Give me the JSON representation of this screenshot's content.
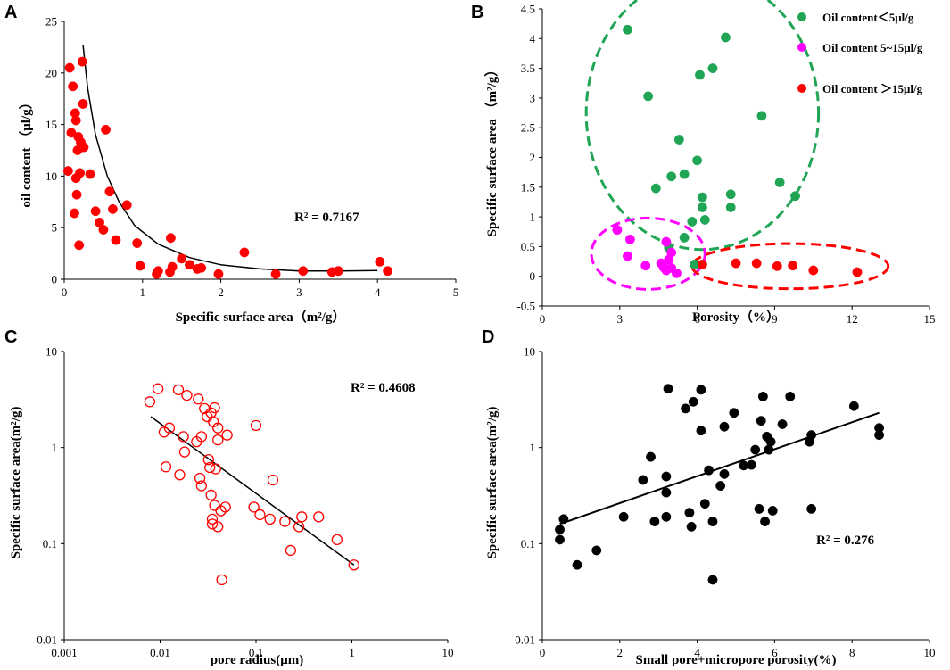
{
  "chart_data": [
    {
      "id": "A",
      "type": "scatter",
      "panel_label": "A",
      "xlabel": "Specific surface area（m²/g）",
      "ylabel": "oil content （μl/g）",
      "xscale": "linear",
      "yscale": "linear",
      "xlim": [
        0,
        5
      ],
      "ylim": [
        0,
        25
      ],
      "xticks": [
        0,
        1,
        2,
        3,
        4,
        5
      ],
      "yticks": [
        0,
        5,
        10,
        15,
        20,
        25
      ],
      "tick_labels_x": [
        "0",
        "1",
        "2",
        "3",
        "4",
        "5"
      ],
      "tick_labels_y": [
        "0",
        "5",
        "10",
        "15",
        "20",
        "25"
      ],
      "marker": "filled-circle",
      "marker_color": "#ff0000",
      "annotation": "R² = 0.7167",
      "fit": {
        "type": "power-like curve",
        "color": "#000000",
        "x": [
          0.24,
          0.3,
          0.4,
          0.55,
          0.7,
          0.9,
          1.2,
          1.6,
          2.0,
          2.5,
          3.0,
          3.5,
          4.0
        ],
        "y": [
          22.7,
          18.5,
          14.0,
          10.0,
          7.5,
          5.2,
          3.4,
          2.1,
          1.4,
          1.0,
          0.8,
          0.8,
          0.85
        ]
      },
      "points": [
        {
          "x": 0.05,
          "y": 10.5
        },
        {
          "x": 0.07,
          "y": 20.5
        },
        {
          "x": 0.09,
          "y": 14.2
        },
        {
          "x": 0.11,
          "y": 18.7
        },
        {
          "x": 0.13,
          "y": 6.4
        },
        {
          "x": 0.14,
          "y": 16.1
        },
        {
          "x": 0.15,
          "y": 15.4
        },
        {
          "x": 0.15,
          "y": 9.8
        },
        {
          "x": 0.16,
          "y": 8.2
        },
        {
          "x": 0.17,
          "y": 12.5
        },
        {
          "x": 0.18,
          "y": 13.8
        },
        {
          "x": 0.19,
          "y": 3.3
        },
        {
          "x": 0.2,
          "y": 10.3
        },
        {
          "x": 0.21,
          "y": 13.3
        },
        {
          "x": 0.23,
          "y": 21.1
        },
        {
          "x": 0.24,
          "y": 17.0
        },
        {
          "x": 0.25,
          "y": 12.8
        },
        {
          "x": 0.33,
          "y": 10.2
        },
        {
          "x": 0.4,
          "y": 6.6
        },
        {
          "x": 0.45,
          "y": 5.5
        },
        {
          "x": 0.5,
          "y": 4.8
        },
        {
          "x": 0.53,
          "y": 14.5
        },
        {
          "x": 0.58,
          "y": 8.5
        },
        {
          "x": 0.62,
          "y": 6.8
        },
        {
          "x": 0.66,
          "y": 3.8
        },
        {
          "x": 0.8,
          "y": 7.2
        },
        {
          "x": 0.93,
          "y": 3.5
        },
        {
          "x": 0.97,
          "y": 1.3
        },
        {
          "x": 1.18,
          "y": 0.5
        },
        {
          "x": 1.2,
          "y": 0.8
        },
        {
          "x": 1.35,
          "y": 0.7
        },
        {
          "x": 1.36,
          "y": 4.0
        },
        {
          "x": 1.38,
          "y": 1.2
        },
        {
          "x": 1.5,
          "y": 2.0
        },
        {
          "x": 1.6,
          "y": 1.4
        },
        {
          "x": 1.7,
          "y": 1.0
        },
        {
          "x": 1.75,
          "y": 1.1
        },
        {
          "x": 1.97,
          "y": 0.5
        },
        {
          "x": 2.3,
          "y": 2.6
        },
        {
          "x": 2.7,
          "y": 0.5
        },
        {
          "x": 3.05,
          "y": 0.8
        },
        {
          "x": 3.42,
          "y": 0.7
        },
        {
          "x": 3.5,
          "y": 0.8
        },
        {
          "x": 4.03,
          "y": 1.7
        },
        {
          "x": 4.13,
          "y": 0.8
        }
      ]
    },
    {
      "id": "B",
      "type": "scatter",
      "panel_label": "B",
      "xlabel": "Porosity（%）",
      "ylabel": "Specific surface area （m²/g）",
      "xscale": "linear",
      "yscale": "linear",
      "xlim": [
        0,
        15
      ],
      "ylim": [
        -0.5,
        4.5
      ],
      "xticks": [
        0,
        3,
        6,
        9,
        12,
        15
      ],
      "yticks": [
        -0.5,
        0,
        0.5,
        1,
        1.5,
        2,
        2.5,
        3,
        3.5,
        4,
        4.5
      ],
      "tick_labels_x": [
        "0",
        "3",
        "6",
        "9",
        "12",
        "15"
      ],
      "tick_labels_y": [
        "-0.5",
        "0",
        "0.5",
        "1",
        "1.5",
        "2",
        "2.5",
        "3",
        "3.5",
        "4",
        "4.5"
      ],
      "legend_position": "top-right",
      "series": [
        {
          "name": "Oil content＜5μl/g",
          "color": "#1fa554",
          "points": [
            {
              "x": 3.3,
              "y": 4.15
            },
            {
              "x": 4.1,
              "y": 3.03
            },
            {
              "x": 4.4,
              "y": 1.48
            },
            {
              "x": 4.9,
              "y": 0.48
            },
            {
              "x": 5.0,
              "y": 1.68
            },
            {
              "x": 5.3,
              "y": 2.3
            },
            {
              "x": 5.5,
              "y": 1.72
            },
            {
              "x": 5.5,
              "y": 0.65
            },
            {
              "x": 5.8,
              "y": 0.92
            },
            {
              "x": 5.9,
              "y": 0.2
            },
            {
              "x": 6.0,
              "y": 1.95
            },
            {
              "x": 6.1,
              "y": 3.39
            },
            {
              "x": 6.2,
              "y": 1.33
            },
            {
              "x": 6.2,
              "y": 1.16
            },
            {
              "x": 6.3,
              "y": 0.95
            },
            {
              "x": 6.6,
              "y": 3.5
            },
            {
              "x": 7.1,
              "y": 4.02
            },
            {
              "x": 7.3,
              "y": 1.38
            },
            {
              "x": 7.3,
              "y": 1.16
            },
            {
              "x": 8.5,
              "y": 2.7
            },
            {
              "x": 9.2,
              "y": 1.58
            },
            {
              "x": 9.8,
              "y": 1.35
            }
          ]
        },
        {
          "name": "Oil content 5~15μl/g",
          "color": "#ff00ff",
          "points": [
            {
              "x": 2.9,
              "y": 0.78
            },
            {
              "x": 3.3,
              "y": 0.34
            },
            {
              "x": 3.4,
              "y": 0.62
            },
            {
              "x": 4.0,
              "y": 0.18
            },
            {
              "x": 4.6,
              "y": 0.22
            },
            {
              "x": 4.7,
              "y": 0.15
            },
            {
              "x": 4.8,
              "y": 0.1
            },
            {
              "x": 4.8,
              "y": 0.58
            },
            {
              "x": 4.9,
              "y": 0.28
            },
            {
              "x": 5.0,
              "y": 0.4
            },
            {
              "x": 5.0,
              "y": 0.14
            },
            {
              "x": 5.2,
              "y": 0.05
            }
          ]
        },
        {
          "name": "Oil content ＞15μl/g",
          "color": "#ff0000",
          "points": [
            {
              "x": 6.2,
              "y": 0.2
            },
            {
              "x": 7.5,
              "y": 0.22
            },
            {
              "x": 8.3,
              "y": 0.22
            },
            {
              "x": 9.1,
              "y": 0.17
            },
            {
              "x": 9.7,
              "y": 0.18
            },
            {
              "x": 10.5,
              "y": 0.1
            },
            {
              "x": 12.2,
              "y": 0.07
            }
          ]
        }
      ],
      "ellipses": [
        {
          "series": "Oil content＜5μl/g",
          "color": "#1fa554",
          "cx": 6.2,
          "cy": 2.75,
          "rx": 4.5,
          "ry": 2.3
        },
        {
          "series": "Oil content 5~15μl/g",
          "color": "#ff00ff",
          "cx": 4.1,
          "cy": 0.38,
          "rx": 2.2,
          "ry": 0.6
        },
        {
          "series": "Oil content ＞15μl/g",
          "color": "#ff0000",
          "cx": 9.6,
          "cy": 0.17,
          "rx": 3.8,
          "ry": 0.38
        }
      ]
    },
    {
      "id": "C",
      "type": "scatter",
      "panel_label": "C",
      "xlabel": "pore radius(μm)",
      "ylabel": "Specific surface area(m²/g)",
      "xscale": "log",
      "yscale": "log",
      "xlim": [
        0.001,
        10
      ],
      "ylim": [
        0.01,
        10
      ],
      "xticks": [
        0.001,
        0.01,
        0.1,
        1,
        10
      ],
      "yticks": [
        0.01,
        0.1,
        1,
        10
      ],
      "tick_labels_x": [
        "0.001",
        "0.01",
        "0.1",
        "1",
        "10"
      ],
      "tick_labels_y": [
        "0.01",
        "0.1",
        "1",
        "10"
      ],
      "marker": "open-circle",
      "marker_color": "#ff0000",
      "annotation": "R² = 0.4608",
      "fit": {
        "type": "power law",
        "color": "#000000",
        "x": [
          0.008,
          1.05
        ],
        "y": [
          2.1,
          0.06
        ]
      },
      "points": [
        {
          "x": 0.0078,
          "y": 3.0
        },
        {
          "x": 0.0095,
          "y": 4.1
        },
        {
          "x": 0.011,
          "y": 1.45
        },
        {
          "x": 0.0115,
          "y": 0.63
        },
        {
          "x": 0.0125,
          "y": 1.6
        },
        {
          "x": 0.0155,
          "y": 4.0
        },
        {
          "x": 0.016,
          "y": 0.52
        },
        {
          "x": 0.0175,
          "y": 1.3
        },
        {
          "x": 0.018,
          "y": 0.9
        },
        {
          "x": 0.019,
          "y": 3.5
        },
        {
          "x": 0.024,
          "y": 1.15
        },
        {
          "x": 0.025,
          "y": 3.2
        },
        {
          "x": 0.026,
          "y": 0.48
        },
        {
          "x": 0.027,
          "y": 1.3
        },
        {
          "x": 0.027,
          "y": 0.4
        },
        {
          "x": 0.029,
          "y": 2.55
        },
        {
          "x": 0.031,
          "y": 2.1
        },
        {
          "x": 0.032,
          "y": 0.75
        },
        {
          "x": 0.033,
          "y": 0.62
        },
        {
          "x": 0.034,
          "y": 2.3
        },
        {
          "x": 0.034,
          "y": 0.32
        },
        {
          "x": 0.035,
          "y": 0.16
        },
        {
          "x": 0.035,
          "y": 0.18
        },
        {
          "x": 0.036,
          "y": 1.85
        },
        {
          "x": 0.037,
          "y": 0.25
        },
        {
          "x": 0.037,
          "y": 2.6
        },
        {
          "x": 0.038,
          "y": 0.6
        },
        {
          "x": 0.04,
          "y": 0.15
        },
        {
          "x": 0.04,
          "y": 1.6
        },
        {
          "x": 0.04,
          "y": 1.2
        },
        {
          "x": 0.043,
          "y": 0.22
        },
        {
          "x": 0.044,
          "y": 0.042
        },
        {
          "x": 0.048,
          "y": 0.24
        },
        {
          "x": 0.05,
          "y": 1.35
        },
        {
          "x": 0.095,
          "y": 0.24
        },
        {
          "x": 0.1,
          "y": 1.7
        },
        {
          "x": 0.11,
          "y": 0.2
        },
        {
          "x": 0.14,
          "y": 0.18
        },
        {
          "x": 0.15,
          "y": 0.46
        },
        {
          "x": 0.2,
          "y": 0.17
        },
        {
          "x": 0.23,
          "y": 0.085
        },
        {
          "x": 0.28,
          "y": 0.15
        },
        {
          "x": 0.3,
          "y": 0.19
        },
        {
          "x": 0.45,
          "y": 0.19
        },
        {
          "x": 0.7,
          "y": 0.11
        },
        {
          "x": 1.05,
          "y": 0.06
        }
      ]
    },
    {
      "id": "D",
      "type": "scatter",
      "panel_label": "D",
      "xlabel": "Small pore+micropore porosity(%)",
      "ylabel": "Specific surface area(m²/g)",
      "xscale": "linear",
      "yscale": "log",
      "xlim": [
        0,
        10
      ],
      "ylim": [
        0.01,
        10
      ],
      "xticks": [
        0,
        2,
        4,
        6,
        8,
        10
      ],
      "yticks": [
        0.01,
        0.1,
        1,
        10
      ],
      "tick_labels_x": [
        "0",
        "2",
        "4",
        "6",
        "8",
        "10"
      ],
      "tick_labels_y": [
        "0.01",
        "0.1",
        "1",
        "10"
      ],
      "marker": "filled-circle",
      "marker_color": "#000000",
      "annotation": "R² = 0.276",
      "fit": {
        "type": "exponential",
        "color": "#000000",
        "x": [
          0.45,
          8.7
        ],
        "y": [
          0.16,
          2.3
        ]
      },
      "points": [
        {
          "x": 0.45,
          "y": 0.14
        },
        {
          "x": 0.45,
          "y": 0.11
        },
        {
          "x": 0.55,
          "y": 0.18
        },
        {
          "x": 0.9,
          "y": 0.06
        },
        {
          "x": 1.4,
          "y": 0.085
        },
        {
          "x": 2.1,
          "y": 0.19
        },
        {
          "x": 2.6,
          "y": 0.46
        },
        {
          "x": 2.8,
          "y": 0.8
        },
        {
          "x": 2.9,
          "y": 0.17
        },
        {
          "x": 3.2,
          "y": 0.5
        },
        {
          "x": 3.2,
          "y": 0.34
        },
        {
          "x": 3.2,
          "y": 0.19
        },
        {
          "x": 3.25,
          "y": 4.1
        },
        {
          "x": 3.7,
          "y": 2.55
        },
        {
          "x": 3.8,
          "y": 0.21
        },
        {
          "x": 3.85,
          "y": 0.15
        },
        {
          "x": 3.9,
          "y": 3.0
        },
        {
          "x": 4.1,
          "y": 4.0
        },
        {
          "x": 4.1,
          "y": 1.5
        },
        {
          "x": 4.2,
          "y": 0.26
        },
        {
          "x": 4.3,
          "y": 0.58
        },
        {
          "x": 4.4,
          "y": 0.17
        },
        {
          "x": 4.4,
          "y": 0.042
        },
        {
          "x": 4.6,
          "y": 0.4
        },
        {
          "x": 4.7,
          "y": 1.65
        },
        {
          "x": 4.7,
          "y": 0.53
        },
        {
          "x": 4.95,
          "y": 2.3
        },
        {
          "x": 5.2,
          "y": 0.65
        },
        {
          "x": 5.4,
          "y": 0.66
        },
        {
          "x": 5.5,
          "y": 0.95
        },
        {
          "x": 5.6,
          "y": 0.23
        },
        {
          "x": 5.65,
          "y": 1.9
        },
        {
          "x": 5.7,
          "y": 3.4
        },
        {
          "x": 5.75,
          "y": 0.17
        },
        {
          "x": 5.8,
          "y": 1.3
        },
        {
          "x": 5.85,
          "y": 0.95
        },
        {
          "x": 5.9,
          "y": 1.15
        },
        {
          "x": 5.95,
          "y": 0.22
        },
        {
          "x": 6.2,
          "y": 1.75
        },
        {
          "x": 6.4,
          "y": 3.4
        },
        {
          "x": 6.9,
          "y": 1.15
        },
        {
          "x": 6.95,
          "y": 1.35
        },
        {
          "x": 6.95,
          "y": 0.23
        },
        {
          "x": 8.05,
          "y": 2.7
        },
        {
          "x": 8.7,
          "y": 1.6
        },
        {
          "x": 8.7,
          "y": 1.35
        }
      ]
    }
  ]
}
